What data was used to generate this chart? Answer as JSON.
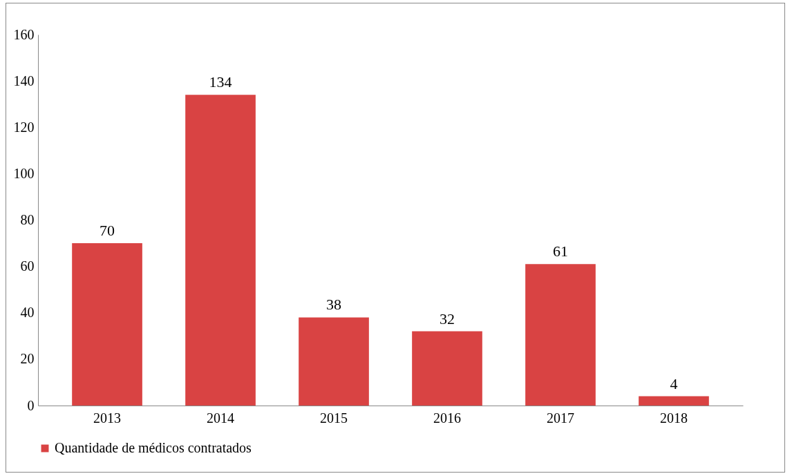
{
  "chart_data": {
    "type": "bar",
    "categories": [
      "2013",
      "2014",
      "2015",
      "2016",
      "2017",
      "2018"
    ],
    "series": [
      {
        "name": "Quantidade de médicos contratados",
        "color": "#d94343",
        "values": [
          70,
          134,
          38,
          32,
          61,
          4
        ]
      }
    ],
    "ylim": [
      0,
      160
    ],
    "yticks": [
      0,
      20,
      40,
      60,
      80,
      100,
      120,
      140,
      160
    ],
    "grid": false,
    "legend": "bottom",
    "data_labels": true
  }
}
